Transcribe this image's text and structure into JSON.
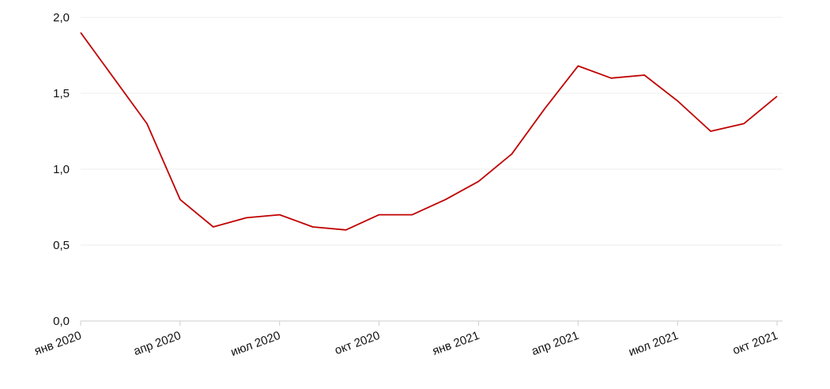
{
  "chart_data": {
    "type": "line",
    "x": [
      "2020-01",
      "2020-02",
      "2020-03",
      "2020-04",
      "2020-05",
      "2020-06",
      "2020-07",
      "2020-08",
      "2020-09",
      "2020-10",
      "2020-11",
      "2020-12",
      "2021-01",
      "2021-02",
      "2021-03",
      "2021-04",
      "2021-05",
      "2021-06",
      "2021-07",
      "2021-08",
      "2021-09",
      "2021-10"
    ],
    "series": [
      {
        "name": null,
        "color": "#c00000",
        "values": [
          1.9,
          1.6,
          1.3,
          0.8,
          0.62,
          0.68,
          0.7,
          0.62,
          0.6,
          0.7,
          0.7,
          0.8,
          0.92,
          1.1,
          1.4,
          1.68,
          1.6,
          1.62,
          1.45,
          1.25,
          1.3,
          1.48
        ]
      }
    ],
    "xlim": [
      "2020-01",
      "2021-10"
    ],
    "xticks": [
      {
        "value": "2020-01",
        "label": "янв 2020"
      },
      {
        "value": "2020-04",
        "label": "апр 2020"
      },
      {
        "value": "2020-07",
        "label": "июл 2020"
      },
      {
        "value": "2020-10",
        "label": "окт 2020"
      },
      {
        "value": "2021-01",
        "label": "янв 2021"
      },
      {
        "value": "2021-04",
        "label": "апр 2021"
      },
      {
        "value": "2021-07",
        "label": "июл 2021"
      },
      {
        "value": "2021-10",
        "label": "окт 2021"
      }
    ],
    "ylim": [
      0,
      2
    ],
    "yticks": [
      {
        "value": 0,
        "label": "0,0"
      },
      {
        "value": 0.5,
        "label": "0,5"
      },
      {
        "value": 1,
        "label": "1,0"
      },
      {
        "value": 1.5,
        "label": "1,5"
      },
      {
        "value": 2,
        "label": "2,0"
      }
    ],
    "grid": true
  }
}
